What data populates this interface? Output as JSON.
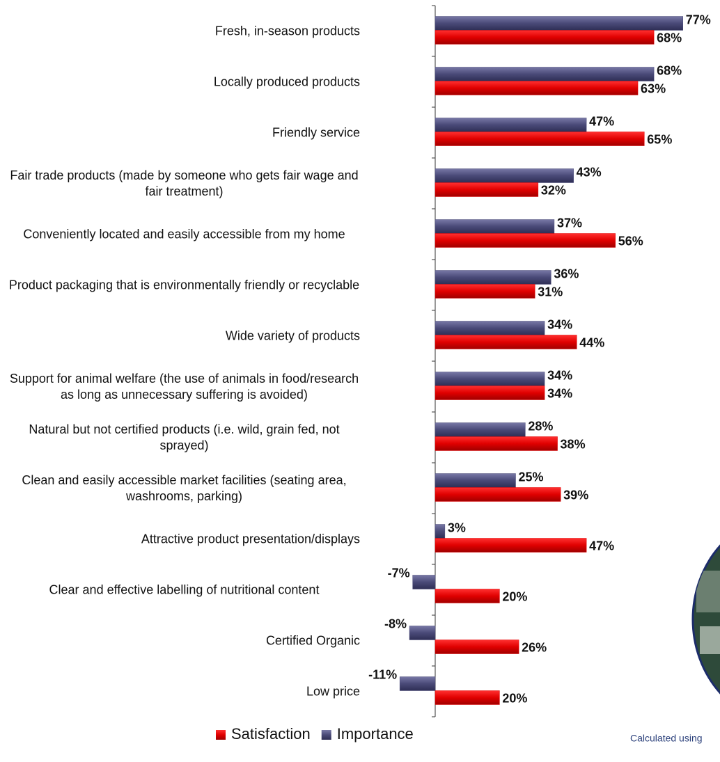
{
  "chart_data": {
    "type": "hbar",
    "categories": [
      "Fresh, in-season products",
      "Locally produced products",
      "Friendly service",
      "Fair trade products (made by someone who gets fair wage and fair treatment)",
      "Conveniently located and easily accessible from my home",
      "Product packaging that is environmentally friendly or recyclable",
      "Wide variety of products",
      "Support for animal welfare (the use of animals in food/research as long as unnecessary suffering is avoided)",
      "Natural but not certified products (i.e. wild, grain fed, not sprayed)",
      "Clean and easily accessible market facilities (seating area, washrooms, parking)",
      "Attractive product presentation/displays",
      "Clear and effective labelling of nutritional content",
      "Certified Organic",
      "Low price"
    ],
    "series": [
      {
        "name": "Satisfaction",
        "color": "#e00000",
        "values": [
          68,
          63,
          65,
          32,
          56,
          31,
          44,
          34,
          38,
          39,
          47,
          20,
          26,
          20
        ],
        "value_labels": [
          "68%",
          "63%",
          "65%",
          "32%",
          "56%",
          "31%",
          "44%",
          "34%",
          "38%",
          "39%",
          "47%",
          "20%",
          "26%",
          "20%"
        ]
      },
      {
        "name": "Importance",
        "color": "#4a4a78",
        "values": [
          77,
          68,
          47,
          43,
          37,
          36,
          34,
          34,
          28,
          25,
          3,
          -7,
          -8,
          -11
        ],
        "value_labels": [
          "77%",
          "68%",
          "47%",
          "43%",
          "37%",
          "36%",
          "34%",
          "34%",
          "28%",
          "25%",
          "3%",
          "-7%",
          "-8%",
          "-11%"
        ]
      }
    ],
    "xlim": [
      -20,
      80
    ],
    "legend": "bottom",
    "footnote": "Calculated using"
  }
}
